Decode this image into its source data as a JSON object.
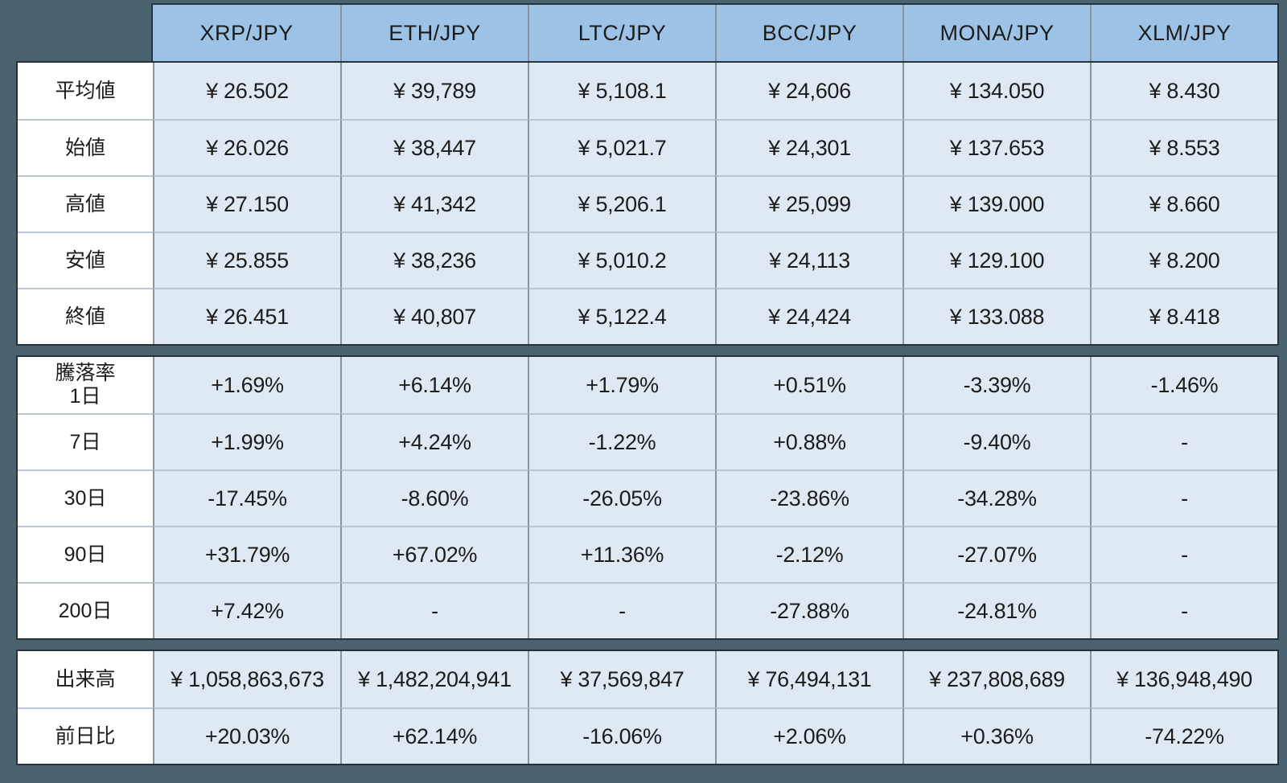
{
  "colors": {
    "background": "#4b636e",
    "header_bg": "#9cc3e6",
    "cell_bg": "#dfe9f4",
    "label_bg": "#ffffff",
    "text": "#1c1c1c"
  },
  "chart_data": {
    "type": "table",
    "columns": [
      {
        "key": "xrp",
        "label": "XRP/JPY"
      },
      {
        "key": "eth",
        "label": "ETH/JPY"
      },
      {
        "key": "ltc",
        "label": "LTC/JPY"
      },
      {
        "key": "bcc",
        "label": "BCC/JPY"
      },
      {
        "key": "mona",
        "label": "MONA/JPY"
      },
      {
        "key": "xlm",
        "label": "XLM/JPY"
      }
    ],
    "sections": [
      {
        "name": "price-stats",
        "rows": [
          {
            "key": "average",
            "label": "平均値",
            "values": [
              "¥ 26.502",
              "¥ 39,789",
              "¥ 5,108.1",
              "¥ 24,606",
              "¥ 134.050",
              "¥ 8.430"
            ]
          },
          {
            "key": "open",
            "label": "始値",
            "values": [
              "¥ 26.026",
              "¥ 38,447",
              "¥ 5,021.7",
              "¥ 24,301",
              "¥ 137.653",
              "¥ 8.553"
            ]
          },
          {
            "key": "high",
            "label": "高値",
            "values": [
              "¥ 27.150",
              "¥ 41,342",
              "¥ 5,206.1",
              "¥ 25,099",
              "¥ 139.000",
              "¥ 8.660"
            ]
          },
          {
            "key": "low",
            "label": "安値",
            "values": [
              "¥ 25.855",
              "¥ 38,236",
              "¥ 5,010.2",
              "¥ 24,113",
              "¥ 129.100",
              "¥ 8.200"
            ]
          },
          {
            "key": "close",
            "label": "終値",
            "values": [
              "¥ 26.451",
              "¥ 40,807",
              "¥ 5,122.4",
              "¥ 24,424",
              "¥ 133.088",
              "¥ 8.418"
            ]
          }
        ]
      },
      {
        "name": "change-rate",
        "rows": [
          {
            "key": "change-1d",
            "label": "騰落率\n1日",
            "values": [
              "+1.69%",
              "+6.14%",
              "+1.79%",
              "+0.51%",
              "-3.39%",
              "-1.46%"
            ]
          },
          {
            "key": "change-7d",
            "label": "7日",
            "values": [
              "+1.99%",
              "+4.24%",
              "-1.22%",
              "+0.88%",
              "-9.40%",
              "-"
            ]
          },
          {
            "key": "change-30d",
            "label": "30日",
            "values": [
              "-17.45%",
              "-8.60%",
              "-26.05%",
              "-23.86%",
              "-34.28%",
              "-"
            ]
          },
          {
            "key": "change-90d",
            "label": "90日",
            "values": [
              "+31.79%",
              "+67.02%",
              "+11.36%",
              "-2.12%",
              "-27.07%",
              "-"
            ]
          },
          {
            "key": "change-200d",
            "label": "200日",
            "values": [
              "+7.42%",
              "-",
              "-",
              "-27.88%",
              "-24.81%",
              "-"
            ]
          }
        ]
      },
      {
        "name": "volume",
        "rows": [
          {
            "key": "volume",
            "label": "出来高",
            "values": [
              "¥ 1,058,863,673",
              "¥ 1,482,204,941",
              "¥ 37,569,847",
              "¥ 76,494,131",
              "¥ 237,808,689",
              "¥ 136,948,490"
            ]
          },
          {
            "key": "prev-day-change",
            "label": "前日比",
            "values": [
              "+20.03%",
              "+62.14%",
              "-16.06%",
              "+2.06%",
              "+0.36%",
              "-74.22%"
            ]
          }
        ]
      }
    ]
  }
}
